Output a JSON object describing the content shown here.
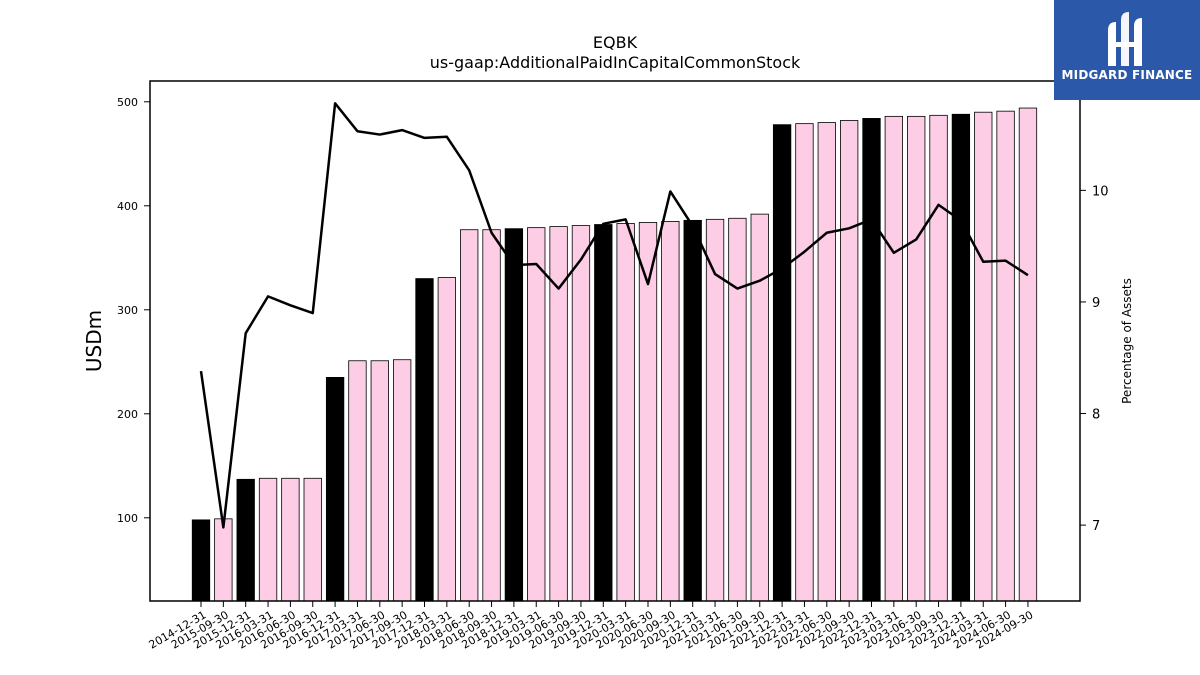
{
  "title": "EQBK",
  "subtitle": "us-gaap:AdditionalPaidInCapitalCommonStock",
  "logo": {
    "text": "MIDGARD FINANCE",
    "bg_color": "#2b58a8"
  },
  "colors": {
    "annual_bar": "#000000",
    "quarter_bar": "#fccde5",
    "line": "#000000"
  },
  "chart_data": {
    "type": "bar",
    "categories": [
      "2014-12-31",
      "2015-09-30",
      "2015-12-31",
      "2016-03-31",
      "2016-06-30",
      "2016-09-30",
      "2016-12-31",
      "2017-03-31",
      "2017-06-30",
      "2017-09-30",
      "2017-12-31",
      "2018-03-31",
      "2018-06-30",
      "2018-09-30",
      "2018-12-31",
      "2019-03-31",
      "2019-06-30",
      "2019-09-30",
      "2019-12-31",
      "2020-03-31",
      "2020-06-30",
      "2020-09-30",
      "2020-12-31",
      "2021-03-31",
      "2021-06-30",
      "2021-09-30",
      "2021-12-31",
      "2022-03-31",
      "2022-06-30",
      "2022-09-30",
      "2022-12-31",
      "2023-03-31",
      "2023-06-30",
      "2023-09-30",
      "2023-12-31",
      "2024-03-31",
      "2024-06-30",
      "2024-09-30"
    ],
    "series": [
      {
        "name": "",
        "axis": "left",
        "type": "bar",
        "values": [
          98,
          99,
          137,
          138,
          138,
          138,
          235,
          251,
          251,
          252,
          330,
          331,
          377,
          377,
          378,
          379,
          380,
          381,
          382,
          383,
          384,
          385,
          386,
          387,
          388,
          392,
          478,
          479,
          480,
          482,
          484,
          486,
          486,
          487,
          488,
          490,
          491,
          494
        ],
        "annual_flags": [
          true,
          false,
          true,
          false,
          false,
          false,
          true,
          false,
          false,
          false,
          true,
          false,
          false,
          false,
          true,
          false,
          false,
          false,
          true,
          false,
          false,
          false,
          true,
          false,
          false,
          false,
          true,
          false,
          false,
          false,
          true,
          false,
          false,
          false,
          true,
          false,
          false,
          false
        ]
      },
      {
        "name": "",
        "axis": "right",
        "type": "line",
        "values": [
          8.38,
          6.98,
          8.72,
          9.05,
          8.97,
          8.9,
          10.78,
          10.53,
          10.5,
          10.54,
          10.47,
          10.48,
          10.18,
          9.62,
          9.33,
          9.34,
          9.12,
          9.38,
          9.7,
          9.74,
          9.16,
          9.99,
          9.68,
          9.25,
          9.12,
          9.19,
          9.3,
          9.45,
          9.62,
          9.66,
          9.74,
          9.44,
          9.56,
          9.87,
          9.73,
          9.36,
          9.37,
          9.24
        ]
      }
    ],
    "ylabel": "USDm",
    "y2label": "Percentage of Assets",
    "ylim": [
      20,
      520
    ],
    "y2lim": [
      6.32,
      10.98
    ],
    "yticks": [
      100,
      200,
      300,
      400,
      500
    ],
    "y2ticks": [
      7,
      8,
      9,
      10
    ],
    "grid": false,
    "legend": "none"
  }
}
